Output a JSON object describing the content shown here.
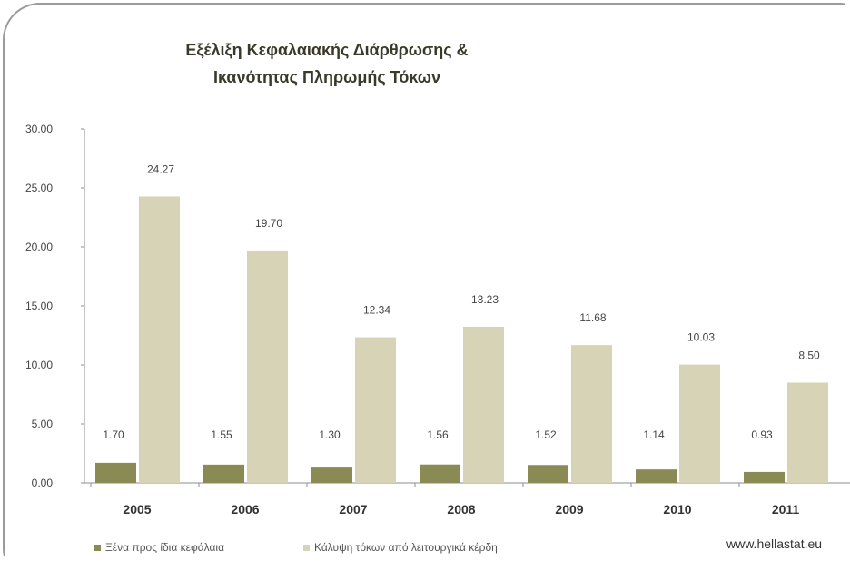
{
  "chart_data": {
    "type": "bar",
    "title_lines": [
      "Εξέλιξη Κεφαλαιακής Διάρθρωσης &",
      "Ικανότητας Πληρωμής Τόκων"
    ],
    "categories": [
      "2005",
      "2006",
      "2007",
      "2008",
      "2009",
      "2010",
      "2011"
    ],
    "series": [
      {
        "name": "Ξένα προς ίδια κεφάλαια",
        "color": "#8a8a55",
        "values": [
          1.7,
          1.55,
          1.3,
          1.56,
          1.52,
          1.14,
          0.93
        ]
      },
      {
        "name": "Κάλυψη τόκων από λειτουργικά κέρδη",
        "color": "#d6d3b6",
        "values": [
          24.27,
          19.7,
          12.34,
          13.23,
          11.68,
          10.03,
          8.5
        ]
      }
    ],
    "y_ticks": [
      "0.00",
      "5.00",
      "10.00",
      "15.00",
      "20.00",
      "25.00",
      "30.00"
    ],
    "ylim": [
      0,
      30
    ],
    "grid": false,
    "legend_position": "bottom",
    "source": "www.hellastat.eu"
  }
}
